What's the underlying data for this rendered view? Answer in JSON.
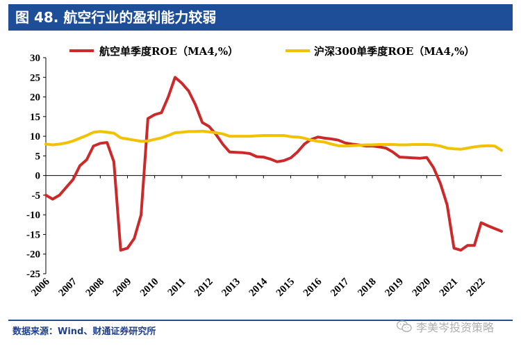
{
  "figure": {
    "title": "图 48. 航空行业的盈利能力较弱",
    "source": "数据来源：Wind、财通证券研究所",
    "watermark": "李美岑投资策略"
  },
  "colors": {
    "title_bg": "#1f4e99",
    "airline": "#cc2a2a",
    "hs300": "#f2c200",
    "axis": "#000000"
  },
  "chart_data": {
    "type": "line",
    "title": "",
    "xlabel": "",
    "ylabel": "",
    "ylim": [
      -25,
      30
    ],
    "yticks": [
      -25,
      -20,
      -15,
      -10,
      -5,
      0,
      5,
      10,
      15,
      20,
      25,
      30
    ],
    "xlim": [
      2006,
      2022.75
    ],
    "xticks": [
      "2006",
      "2007",
      "2008",
      "2009",
      "2010",
      "2011",
      "2012",
      "2013",
      "2014",
      "2015",
      "2016",
      "2017",
      "2018",
      "2019",
      "2020",
      "2021",
      "2022"
    ],
    "legend_position": "top",
    "series": [
      {
        "name": "航空单季度ROE（MA4,%）",
        "color": "#cc2a2a",
        "x": [
          2006.0,
          2006.25,
          2006.5,
          2006.75,
          2007.0,
          2007.25,
          2007.5,
          2007.75,
          2008.0,
          2008.25,
          2008.5,
          2008.75,
          2009.0,
          2009.25,
          2009.5,
          2009.75,
          2010.0,
          2010.25,
          2010.5,
          2010.75,
          2011.0,
          2011.25,
          2011.5,
          2011.75,
          2012.0,
          2012.25,
          2012.5,
          2012.75,
          2013.0,
          2013.25,
          2013.5,
          2013.75,
          2014.0,
          2014.25,
          2014.5,
          2014.75,
          2015.0,
          2015.25,
          2015.5,
          2015.75,
          2016.0,
          2016.25,
          2016.5,
          2016.75,
          2017.0,
          2017.25,
          2017.5,
          2017.75,
          2018.0,
          2018.25,
          2018.5,
          2018.75,
          2019.0,
          2019.25,
          2019.5,
          2019.75,
          2020.0,
          2020.25,
          2020.5,
          2020.75,
          2021.0,
          2021.25,
          2021.5,
          2021.75,
          2022.0,
          2022.25,
          2022.5,
          2022.75
        ],
        "values": [
          -5.0,
          -6.0,
          -5.0,
          -3.0,
          -1.0,
          2.5,
          4.0,
          7.5,
          8.2,
          8.4,
          3.5,
          -19.0,
          -18.5,
          -16.0,
          -10.0,
          14.5,
          15.5,
          16.0,
          20.0,
          25.0,
          23.5,
          21.5,
          18.0,
          13.5,
          12.5,
          10.5,
          8.0,
          6.0,
          5.9,
          5.8,
          5.6,
          4.8,
          4.7,
          4.2,
          3.5,
          3.8,
          4.5,
          6.0,
          8.0,
          9.2,
          9.8,
          9.5,
          9.3,
          9.0,
          8.3,
          8.0,
          7.8,
          7.5,
          7.5,
          7.3,
          7.0,
          6.0,
          4.7,
          4.6,
          4.5,
          4.4,
          4.6,
          2.0,
          -2.0,
          -7.5,
          -18.5,
          -19.0,
          -17.8,
          -17.8,
          -12.0,
          -12.8,
          -13.5,
          -14.2
        ]
      },
      {
        "name": "沪深300单季度ROE（MA4,%）",
        "color": "#f2c200",
        "x": [
          2006.0,
          2006.25,
          2006.5,
          2006.75,
          2007.0,
          2007.25,
          2007.5,
          2007.75,
          2008.0,
          2008.25,
          2008.5,
          2008.75,
          2009.0,
          2009.25,
          2009.5,
          2009.75,
          2010.0,
          2010.25,
          2010.5,
          2010.75,
          2011.0,
          2011.25,
          2011.5,
          2011.75,
          2012.0,
          2012.25,
          2012.5,
          2012.75,
          2013.0,
          2013.25,
          2013.5,
          2013.75,
          2014.0,
          2014.25,
          2014.5,
          2014.75,
          2015.0,
          2015.25,
          2015.5,
          2015.75,
          2016.0,
          2016.25,
          2016.5,
          2016.75,
          2017.0,
          2017.25,
          2017.5,
          2017.75,
          2018.0,
          2018.25,
          2018.5,
          2018.75,
          2019.0,
          2019.25,
          2019.5,
          2019.75,
          2020.0,
          2020.25,
          2020.5,
          2020.75,
          2021.0,
          2021.25,
          2021.5,
          2021.75,
          2022.0,
          2022.25,
          2022.5,
          2022.75
        ],
        "values": [
          8.0,
          7.8,
          8.0,
          8.3,
          8.8,
          9.5,
          10.2,
          11.0,
          11.2,
          11.0,
          10.8,
          9.6,
          9.3,
          9.0,
          8.7,
          8.8,
          9.2,
          9.6,
          10.2,
          10.9,
          11.0,
          11.2,
          11.2,
          11.3,
          11.1,
          10.9,
          10.6,
          10.0,
          10.0,
          10.0,
          10.0,
          10.1,
          10.2,
          10.2,
          10.2,
          10.2,
          9.9,
          9.8,
          9.5,
          9.0,
          8.7,
          8.5,
          8.0,
          7.6,
          7.5,
          7.6,
          7.7,
          7.8,
          7.8,
          7.9,
          7.9,
          7.9,
          7.8,
          7.8,
          7.9,
          7.9,
          7.9,
          7.8,
          7.5,
          7.0,
          6.8,
          6.7,
          7.0,
          7.3,
          7.5,
          7.6,
          7.5,
          6.4
        ]
      }
    ]
  }
}
